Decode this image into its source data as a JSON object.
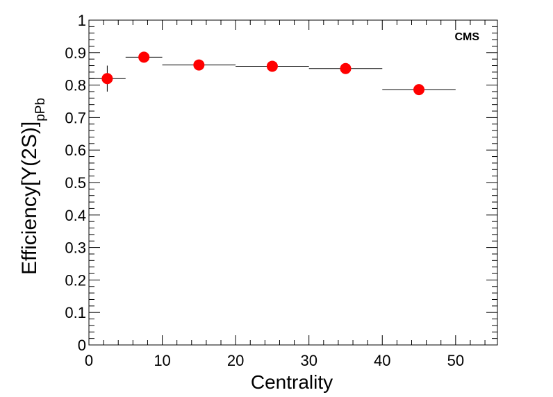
{
  "chart_data": {
    "type": "scatter",
    "xlabel": "Centrality",
    "ylabel": {
      "main": "Efficiency[Υ(2S)]",
      "subscript": "pPb"
    },
    "annotation": "CMS",
    "xlim": [
      0,
      55.7
    ],
    "ylim": [
      0,
      1
    ],
    "x_ticks": [
      0,
      10,
      20,
      30,
      40,
      50
    ],
    "y_ticks": [
      0,
      0.1,
      0.2,
      0.3,
      0.4,
      0.5,
      0.6,
      0.7,
      0.8,
      0.9,
      1
    ],
    "grid": false,
    "marker_color": "#ff0000",
    "points": [
      {
        "x": 2.5,
        "x_low": 0,
        "x_high": 5,
        "y": 0.82,
        "y_err": 0.04
      },
      {
        "x": 7.5,
        "x_low": 5,
        "x_high": 10,
        "y": 0.886,
        "y_err": 0.006
      },
      {
        "x": 15,
        "x_low": 10,
        "x_high": 20,
        "y": 0.862,
        "y_err": 0.004
      },
      {
        "x": 25,
        "x_low": 20,
        "x_high": 30,
        "y": 0.858,
        "y_err": 0.004
      },
      {
        "x": 35,
        "x_low": 30,
        "x_high": 40,
        "y": 0.851,
        "y_err": 0.004
      },
      {
        "x": 45,
        "x_low": 40,
        "x_high": 50,
        "y": 0.786,
        "y_err": 0.004
      }
    ]
  }
}
